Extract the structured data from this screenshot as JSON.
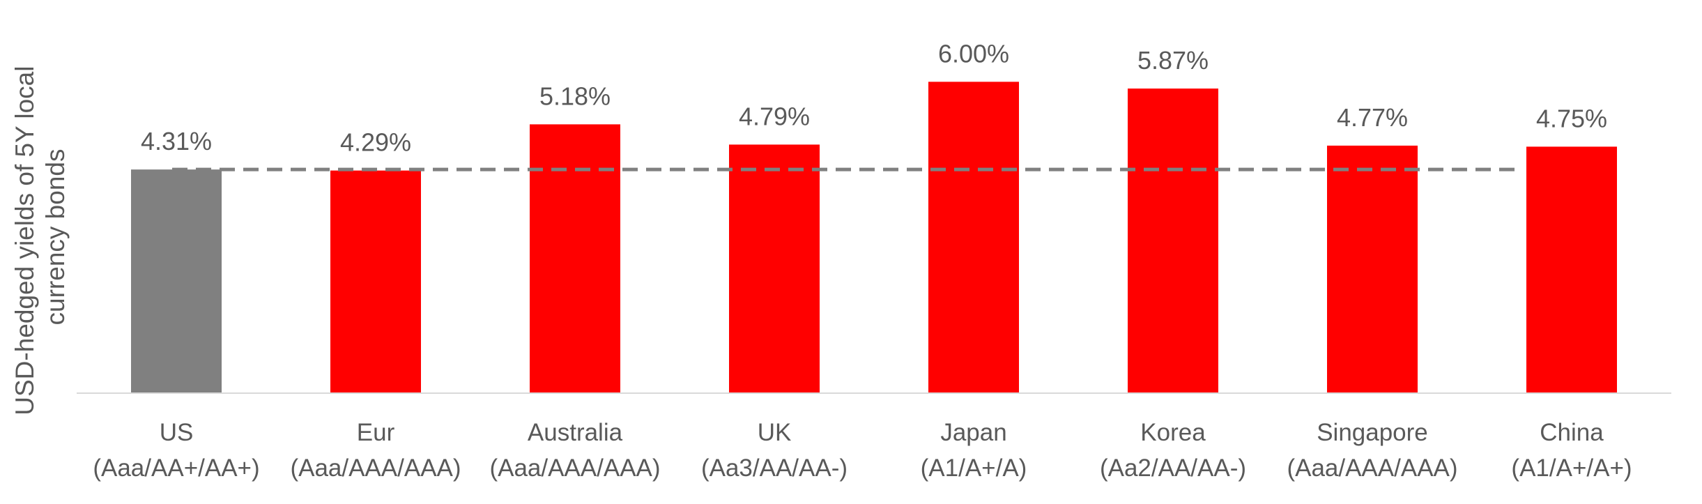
{
  "chart_data": {
    "type": "bar",
    "ylabel_lines": [
      "USD-hedged yields of 5Y local",
      "currency bonds"
    ],
    "categories": [
      {
        "name": "US",
        "rating": "(Aaa/AA+/AA+)"
      },
      {
        "name": "Eur",
        "rating": "(Aaa/AAA/AAA)"
      },
      {
        "name": "Australia",
        "rating": "(Aaa/AAA/AAA)"
      },
      {
        "name": "UK",
        "rating": "(Aa3/AA/AA-)"
      },
      {
        "name": "Japan",
        "rating": "(A1/A+/A)"
      },
      {
        "name": "Korea",
        "rating": "(Aa2/AA/AA-)"
      },
      {
        "name": "Singapore",
        "rating": "(Aaa/AAA/AAA)"
      },
      {
        "name": "China",
        "rating": "(A1/A+/A+)"
      }
    ],
    "values": [
      4.31,
      4.29,
      5.18,
      4.79,
      6.0,
      5.87,
      4.77,
      4.75
    ],
    "value_labels": [
      "4.31%",
      "4.29%",
      "5.18%",
      "4.79%",
      "6.00%",
      "5.87%",
      "4.77%",
      "4.75%"
    ],
    "reference_line": {
      "value": 4.31,
      "style": "dashed"
    },
    "ylim": [
      0,
      6.3
    ],
    "y_axis_visible": false,
    "grid": false,
    "colors": {
      "highlight": "#808080",
      "bars": "#ff0000",
      "reference": "#808080",
      "axis": "#d9d9d9",
      "text": "#595959"
    }
  }
}
